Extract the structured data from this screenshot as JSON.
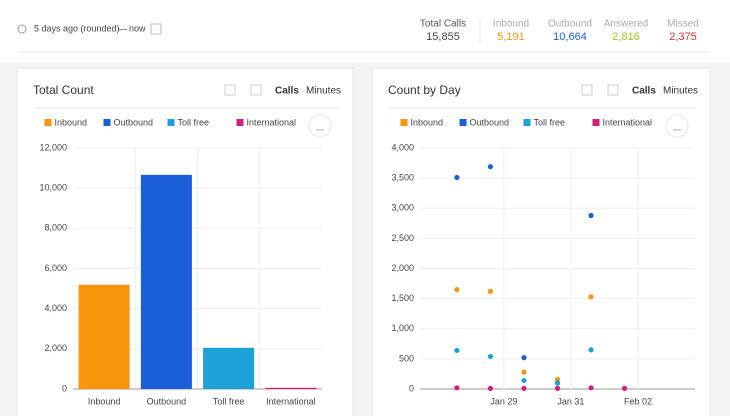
{
  "header": {
    "range_start": "5 days ago (rounded)",
    "range_sep": "—",
    "range_end": "now"
  },
  "stats": [
    {
      "label": "Total Calls",
      "value": "15,855"
    },
    {
      "label": "Inbound",
      "value": "5,191"
    },
    {
      "label": "Outbound",
      "value": "10,664"
    },
    {
      "label": "Answered",
      "value": "2,816"
    },
    {
      "label": "Missed",
      "value": "2,375"
    }
  ],
  "chart_data": [
    {
      "type": "bar",
      "title": "Total Count",
      "controls": [
        "Calls",
        "Minutes"
      ],
      "categories": [
        "Inbound",
        "Outbound",
        "Toll free",
        "International"
      ],
      "values": [
        5191,
        10664,
        2050,
        60
      ],
      "colors": [
        "#f7960d",
        "#1b5fd8",
        "#1da2d8",
        "#d0207f"
      ],
      "ylim": [
        0,
        12000
      ],
      "yticks": [
        0,
        {
          "value": 2000,
          "label": "2,000"
        },
        {
          "value": 4000,
          "label": "4,000"
        },
        {
          "value": 6000,
          "label": "6,000"
        },
        {
          "value": 8000,
          "label": "8,000"
        },
        {
          "value": 10000,
          "label": "10,000"
        },
        {
          "value": 12000,
          "label": "12,000"
        }
      ],
      "grid": true
    },
    {
      "type": "scatter",
      "title": "Count by Day",
      "controls": [
        "Calls",
        "Minutes"
      ],
      "series": [
        {
          "name": "Inbound",
          "color": "#f7960d",
          "x": [
            27.6,
            28.6,
            29.6,
            30.6,
            31.6
          ],
          "values": [
            1650,
            1620,
            280,
            160,
            1530
          ]
        },
        {
          "name": "Outbound",
          "color": "#1b5fd8",
          "x": [
            27.6,
            28.6,
            29.6,
            30.6,
            31.6
          ],
          "values": [
            3510,
            3690,
            520,
            100,
            2880
          ]
        },
        {
          "name": "Toll free",
          "color": "#1da2d8",
          "x": [
            27.6,
            28.6,
            29.6,
            30.6,
            31.6
          ],
          "values": [
            640,
            540,
            140,
            100,
            650
          ]
        },
        {
          "name": "International",
          "color": "#d0207f",
          "x": [
            27.6,
            28.6,
            29.6,
            30.6,
            31.6,
            32.6
          ],
          "values": [
            20,
            10,
            10,
            10,
            20,
            10
          ]
        }
      ],
      "xlim": [
        26.5,
        34.7
      ],
      "xticks": [
        {
          "value": 29,
          "label": "Jan 29"
        },
        {
          "value": 31,
          "label": "Jan 31"
        },
        {
          "value": 33,
          "label": "Feb 02"
        }
      ],
      "ylim": [
        0,
        4000
      ],
      "yticks": [
        0,
        500,
        {
          "value": 1000,
          "label": "1,000"
        },
        {
          "value": 1500,
          "label": "1,500"
        },
        {
          "value": 2000,
          "label": "2,000"
        },
        {
          "value": 2500,
          "label": "2,500"
        },
        {
          "value": 3000,
          "label": "3,000"
        },
        {
          "value": 3500,
          "label": "3,500"
        },
        {
          "value": 4000,
          "label": "4,000"
        }
      ],
      "grid": true
    }
  ]
}
